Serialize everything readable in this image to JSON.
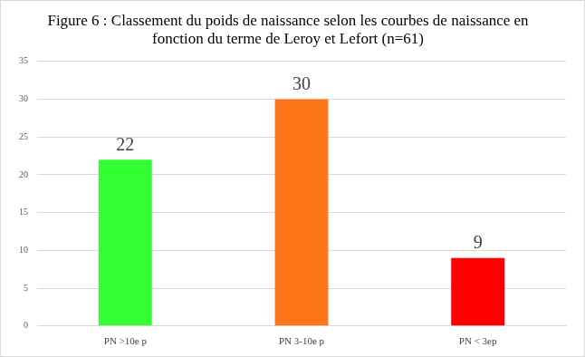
{
  "chart_data": {
    "type": "bar",
    "title": "Figure 6 : Classement du poids de naissance selon les courbes de naissance en fonction du terme de Leroy et Lefort (n=61)",
    "categories": [
      "PN >10e p",
      "PN 3-10e p",
      "PN < 3ep"
    ],
    "values": [
      22,
      30,
      9
    ],
    "colors": [
      "#33ff33",
      "#ff7519",
      "#ff0000"
    ],
    "ylim": [
      0,
      35
    ],
    "yticks": [
      0,
      5,
      10,
      15,
      20,
      25,
      30,
      35
    ],
    "grid": true,
    "data_labels": true
  }
}
